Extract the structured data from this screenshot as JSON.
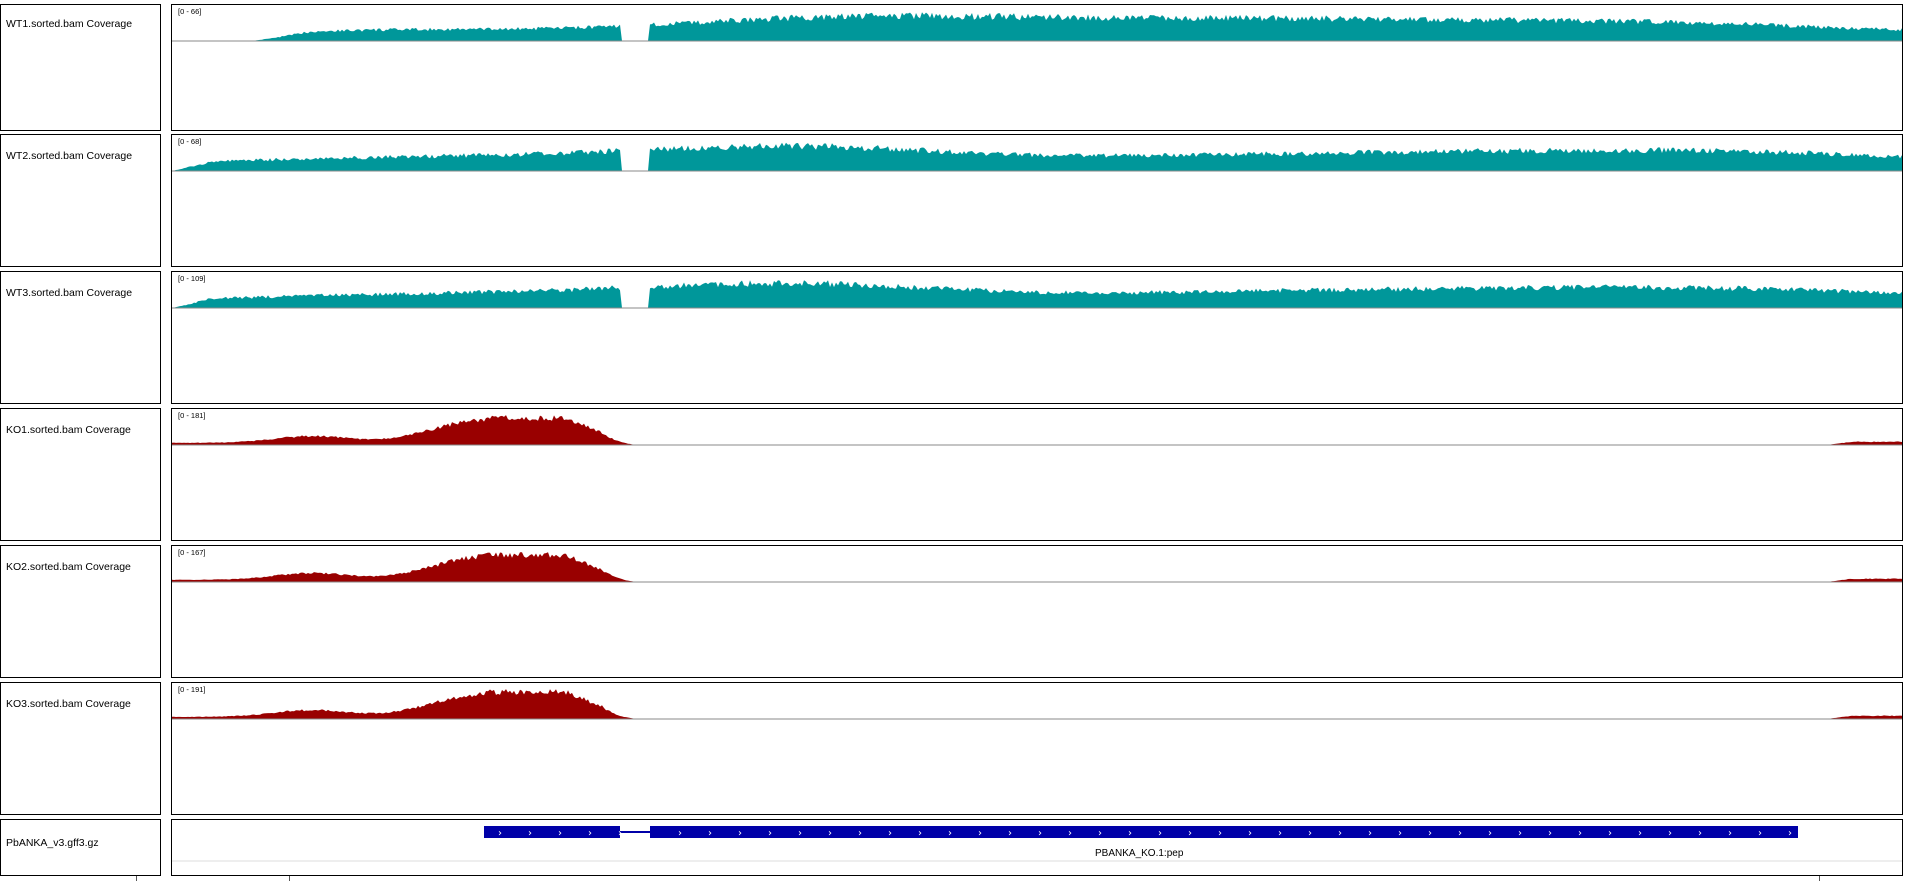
{
  "colors": {
    "wt": "#00979a",
    "ko": "#990000",
    "gene": "#0000a8",
    "border": "#000000"
  },
  "tracks": [
    {
      "name": "WT1.sorted.bam Coverage",
      "range": "[0 - 66]",
      "group": "wt"
    },
    {
      "name": "WT2.sorted.bam Coverage",
      "range": "[0 - 68]",
      "group": "wt"
    },
    {
      "name": "WT3.sorted.bam Coverage",
      "range": "[0 - 109]",
      "group": "wt"
    },
    {
      "name": "KO1.sorted.bam Coverage",
      "range": "[0 - 181]",
      "group": "ko"
    },
    {
      "name": "KO2.sorted.bam Coverage",
      "range": "[0 - 167]",
      "group": "ko"
    },
    {
      "name": "KO3.sorted.bam Coverage",
      "range": "[0 - 191]",
      "group": "ko"
    }
  ],
  "annotation": {
    "name": "PbANKA_v3.gff3.gz",
    "feature_label": "PBANKA_KO.1:pep",
    "strand_glyph": "›"
  }
}
